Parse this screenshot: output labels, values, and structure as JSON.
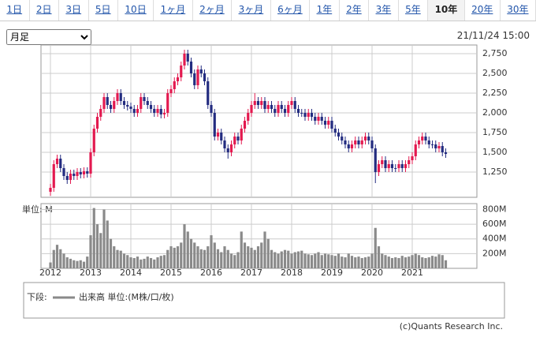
{
  "tabs": [
    {
      "label": "1日"
    },
    {
      "label": "2日"
    },
    {
      "label": "3日"
    },
    {
      "label": "5日"
    },
    {
      "label": "10日"
    },
    {
      "label": "1ヶ月"
    },
    {
      "label": "2ヶ月"
    },
    {
      "label": "3ヶ月"
    },
    {
      "label": "6ヶ月"
    },
    {
      "label": "1年"
    },
    {
      "label": "2年"
    },
    {
      "label": "3年"
    },
    {
      "label": "5年"
    },
    {
      "label": "10年",
      "selected": true
    },
    {
      "label": "20年"
    },
    {
      "label": "30年"
    }
  ],
  "period_select": "月足",
  "timestamp": "21/11/24 15:00",
  "footer": "(c)Quants Research Inc.",
  "chart_data": {
    "type": "candlestick",
    "categories": [
      "2012",
      null,
      null,
      null,
      null,
      null,
      null,
      null,
      null,
      null,
      null,
      null,
      "2013",
      null,
      null,
      null,
      null,
      null,
      null,
      null,
      null,
      null,
      null,
      null,
      "2014",
      null,
      null,
      null,
      null,
      null,
      null,
      null,
      null,
      null,
      null,
      null,
      "2015",
      null,
      null,
      null,
      null,
      null,
      null,
      null,
      null,
      null,
      null,
      null,
      "2016",
      null,
      null,
      null,
      null,
      null,
      null,
      null,
      null,
      null,
      null,
      null,
      "2017",
      null,
      null,
      null,
      null,
      null,
      null,
      null,
      null,
      null,
      null,
      null,
      "2018",
      null,
      null,
      null,
      null,
      null,
      null,
      null,
      null,
      null,
      null,
      null,
      "2019",
      null,
      null,
      null,
      null,
      null,
      null,
      null,
      null,
      null,
      null,
      null,
      "2020",
      null,
      null,
      null,
      null,
      null,
      null,
      null,
      null,
      null,
      null,
      null,
      "2021",
      null,
      null,
      null,
      null,
      null,
      null,
      null,
      null,
      null,
      null
    ],
    "open": [
      1000,
      1050,
      1350,
      1420,
      1300,
      1200,
      1150,
      1230,
      1200,
      1250,
      1220,
      1260,
      1230,
      1500,
      1800,
      1950,
      2050,
      2200,
      2100,
      2050,
      2150,
      2250,
      2150,
      2100,
      2080,
      2050,
      2000,
      2050,
      2200,
      2150,
      2100,
      2050,
      2000,
      2050,
      1980,
      2000,
      2250,
      2300,
      2400,
      2450,
      2600,
      2750,
      2650,
      2500,
      2350,
      2550,
      2500,
      2400,
      2100,
      2000,
      1700,
      1750,
      1650,
      1550,
      1500,
      1600,
      1700,
      1650,
      1800,
      1900,
      2000,
      2100,
      2150,
      2100,
      2150,
      2050,
      2100,
      2050,
      2000,
      2100,
      2050,
      2000,
      2100,
      2150,
      2050,
      2000,
      2000,
      1950,
      2000,
      1950,
      1900,
      1950,
      1900,
      1850,
      1900,
      1800,
      1750,
      1700,
      1650,
      1600,
      1550,
      1600,
      1650,
      1600,
      1650,
      1700,
      1650,
      1550,
      1250,
      1350,
      1400,
      1300,
      1350,
      1300,
      1300,
      1350,
      1300,
      1350,
      1400,
      1450,
      1600,
      1650,
      1700,
      1650,
      1600,
      1600,
      1550,
      1580,
      1500
    ],
    "high": [
      1100,
      1400,
      1470,
      1470,
      1350,
      1250,
      1280,
      1280,
      1300,
      1300,
      1310,
      1310,
      1550,
      1850,
      2000,
      2100,
      2250,
      2250,
      2150,
      2200,
      2300,
      2300,
      2200,
      2150,
      2130,
      2100,
      2100,
      2250,
      2250,
      2200,
      2150,
      2100,
      2100,
      2100,
      2050,
      2300,
      2350,
      2450,
      2500,
      2650,
      2800,
      2800,
      2700,
      2550,
      2600,
      2600,
      2550,
      2450,
      2150,
      2050,
      1800,
      1800,
      1700,
      1600,
      1650,
      1750,
      1750,
      1850,
      1950,
      2050,
      2150,
      2250,
      2200,
      2200,
      2200,
      2150,
      2150,
      2100,
      2150,
      2150,
      2100,
      2150,
      2200,
      2200,
      2100,
      2050,
      2050,
      2050,
      2050,
      2000,
      2000,
      2000,
      1950,
      1950,
      1950,
      1850,
      1800,
      1750,
      1700,
      1650,
      1650,
      1700,
      1700,
      1700,
      1750,
      1750,
      1700,
      1600,
      1400,
      1450,
      1450,
      1400,
      1400,
      1350,
      1400,
      1400,
      1400,
      1450,
      1500,
      1650,
      1700,
      1750,
      1750,
      1700,
      1650,
      1650,
      1630,
      1630,
      1550
    ],
    "low": [
      950,
      1000,
      1300,
      1250,
      1150,
      1100,
      1100,
      1150,
      1150,
      1170,
      1170,
      1180,
      1180,
      1450,
      1750,
      1900,
      2000,
      2050,
      2000,
      2000,
      2100,
      2100,
      2050,
      2030,
      2000,
      1950,
      1950,
      2000,
      2100,
      2050,
      2000,
      1950,
      1950,
      1930,
      1930,
      1950,
      2200,
      2250,
      2350,
      2400,
      2550,
      2600,
      2450,
      2300,
      2300,
      2450,
      2350,
      2050,
      1950,
      1650,
      1650,
      1600,
      1500,
      1420,
      1450,
      1550,
      1600,
      1600,
      1750,
      1850,
      1950,
      2050,
      2050,
      2050,
      2000,
      2000,
      2000,
      1950,
      1950,
      2000,
      1950,
      1950,
      2050,
      2000,
      1950,
      1950,
      1900,
      1900,
      1900,
      1850,
      1850,
      1850,
      1800,
      1800,
      1750,
      1700,
      1650,
      1600,
      1550,
      1500,
      1500,
      1550,
      1550,
      1550,
      1600,
      1600,
      1500,
      1110,
      1200,
      1300,
      1250,
      1250,
      1250,
      1250,
      1250,
      1250,
      1250,
      1300,
      1350,
      1400,
      1550,
      1600,
      1600,
      1550,
      1550,
      1500,
      1500,
      1450,
      1430
    ],
    "close": [
      1050,
      1350,
      1420,
      1300,
      1200,
      1150,
      1230,
      1200,
      1250,
      1220,
      1260,
      1230,
      1500,
      1800,
      1950,
      2050,
      2200,
      2100,
      2050,
      2150,
      2250,
      2150,
      2100,
      2080,
      2050,
      2000,
      2050,
      2200,
      2150,
      2100,
      2050,
      2000,
      2050,
      1980,
      2000,
      2250,
      2300,
      2400,
      2450,
      2600,
      2750,
      2650,
      2500,
      2350,
      2550,
      2500,
      2400,
      2100,
      2000,
      1700,
      1750,
      1650,
      1550,
      1500,
      1600,
      1700,
      1650,
      1800,
      1900,
      2000,
      2100,
      2150,
      2100,
      2150,
      2050,
      2100,
      2050,
      2000,
      2100,
      2050,
      2000,
      2100,
      2150,
      2050,
      2000,
      2000,
      1950,
      2000,
      1950,
      1900,
      1950,
      1900,
      1850,
      1900,
      1800,
      1750,
      1700,
      1650,
      1600,
      1550,
      1600,
      1650,
      1600,
      1650,
      1700,
      1650,
      1550,
      1250,
      1350,
      1400,
      1300,
      1350,
      1300,
      1300,
      1350,
      1300,
      1350,
      1400,
      1450,
      1600,
      1650,
      1700,
      1650,
      1600,
      1600,
      1550,
      1580,
      1500,
      1480
    ],
    "up_color": "#e3194f",
    "down_color": "#232c80",
    "ylim": [
      930,
      2860
    ],
    "yticks": [
      {
        "value": 1250,
        "label": "1,250"
      },
      {
        "value": 1500,
        "label": "1,500"
      },
      {
        "value": 1750,
        "label": "1,750"
      },
      {
        "value": 2000,
        "label": "2,000"
      },
      {
        "value": 2250,
        "label": "2,250"
      },
      {
        "value": 2500,
        "label": "2,500"
      },
      {
        "value": 2750,
        "label": "2,750"
      }
    ],
    "grid": true,
    "legend_prefix": "下段:",
    "volume": {
      "name": "出来高 単位:(M株/口/枚)",
      "color": "#8a8a8a",
      "unit_label": "単位: M",
      "values": [
        80,
        250,
        320,
        260,
        200,
        150,
        130,
        110,
        100,
        110,
        90,
        160,
        450,
        820,
        600,
        480,
        800,
        650,
        400,
        300,
        250,
        240,
        200,
        180,
        150,
        140,
        160,
        120,
        130,
        160,
        140,
        120,
        150,
        170,
        180,
        250,
        300,
        280,
        300,
        350,
        600,
        500,
        400,
        350,
        300,
        260,
        250,
        300,
        450,
        350,
        260,
        220,
        300,
        250,
        200,
        180,
        220,
        500,
        350,
        300,
        280,
        250,
        300,
        350,
        500,
        400,
        250,
        220,
        200,
        230,
        250,
        240,
        200,
        220,
        230,
        240,
        200,
        190,
        180,
        200,
        220,
        180,
        200,
        190,
        180,
        170,
        200,
        160,
        150,
        200,
        170,
        150,
        160,
        140,
        150,
        160,
        200,
        550,
        300,
        200,
        180,
        160,
        140,
        150,
        140,
        170,
        150,
        160,
        180,
        200,
        180,
        150,
        140,
        150,
        170,
        160,
        190,
        180,
        110
      ],
      "ylim": [
        0,
        880
      ],
      "yticks": [
        {
          "value": 200,
          "label": "200M"
        },
        {
          "value": 400,
          "label": "400M"
        },
        {
          "value": 600,
          "label": "600M"
        },
        {
          "value": 800,
          "label": "800M"
        }
      ]
    }
  }
}
